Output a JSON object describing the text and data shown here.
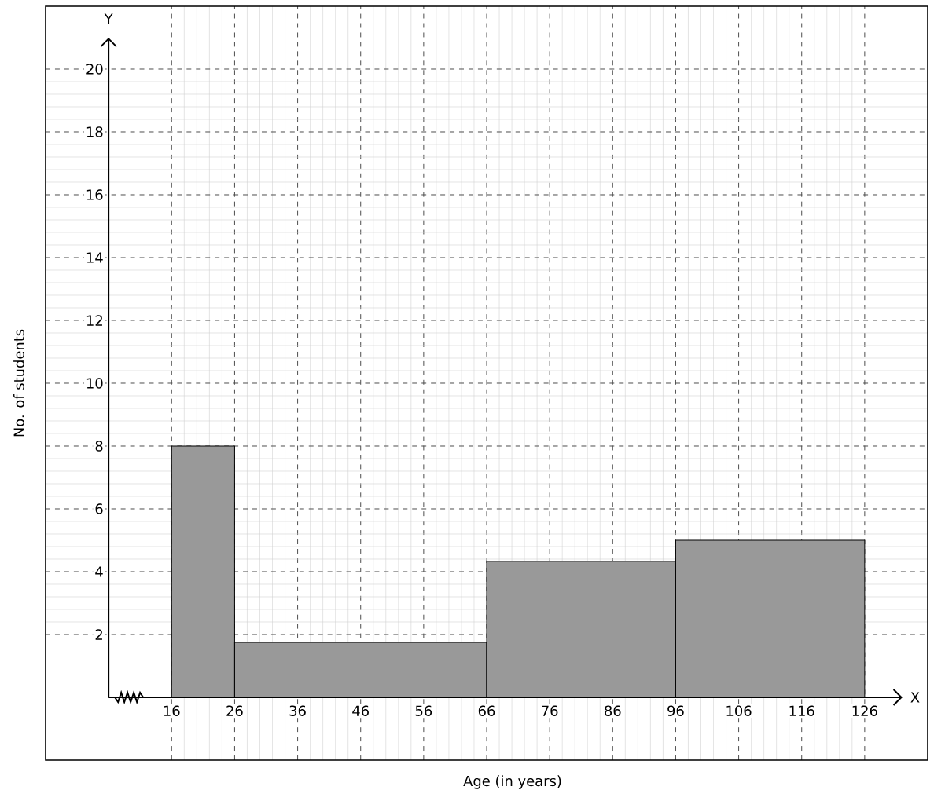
{
  "chart_data": {
    "type": "histogram",
    "xlabel": "Age (in years)",
    "ylabel": "No. of students",
    "annotations": [
      "X",
      "Y"
    ],
    "bins": [
      16,
      26,
      66,
      96,
      126
    ],
    "values": [
      8,
      1.75,
      4.33,
      5
    ],
    "color": "#999999",
    "xlim": [
      -4,
      136
    ],
    "ylim": [
      -2,
      22
    ],
    "xticks": [
      16,
      26,
      36,
      46,
      56,
      66,
      76,
      86,
      96,
      106,
      116,
      126
    ],
    "yticks": [
      2,
      4,
      6,
      8,
      10,
      12,
      14,
      16,
      18,
      20
    ],
    "grid": true
  }
}
